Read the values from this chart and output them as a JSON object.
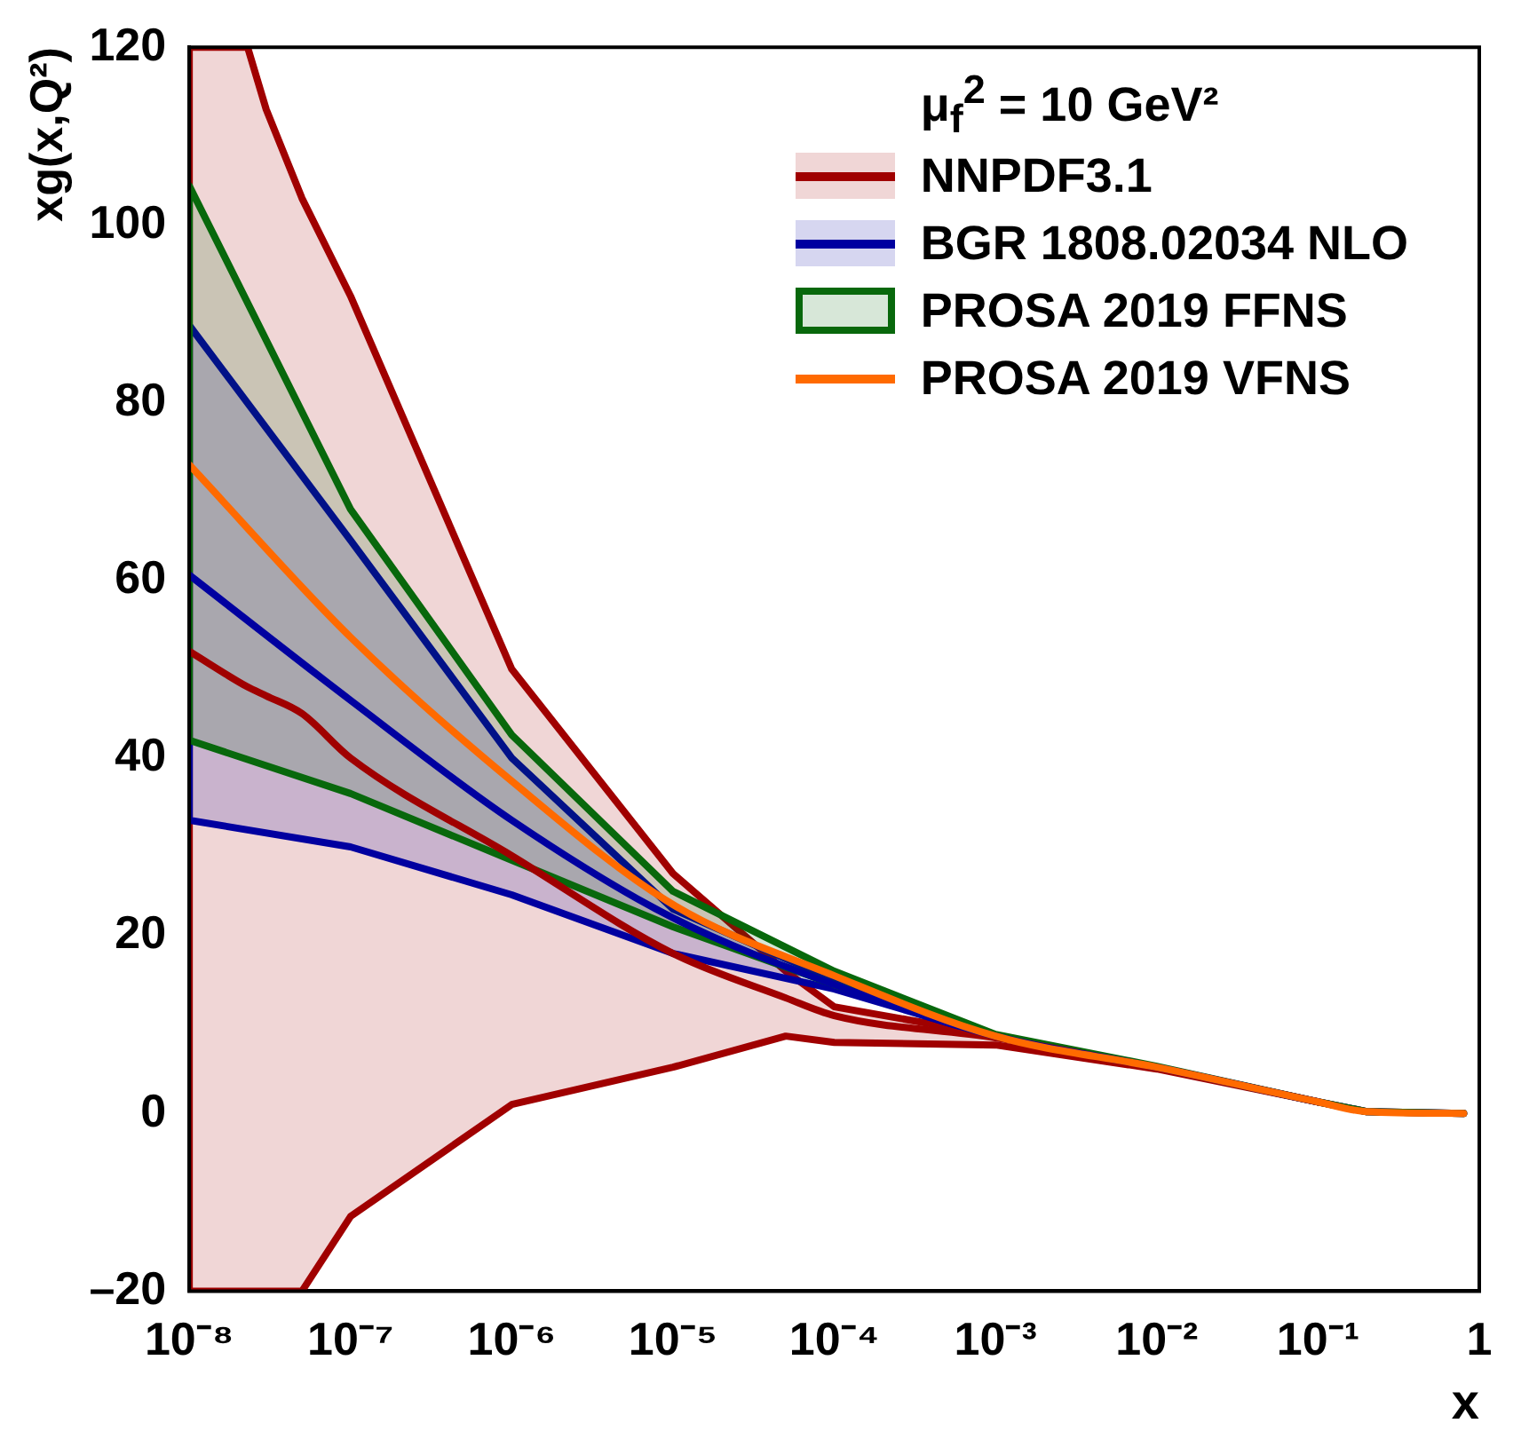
{
  "chart_data": {
    "type": "line",
    "xlabel": "x",
    "ylabel": "xg(x,Q²)",
    "legend_title": "μ$_{f}$$^{2}$ = 10 GeV²",
    "legend": "top right",
    "log": "x",
    "grid": false,
    "marker": "none",
    "line_style": "solid",
    "xlim": [
      1e-08,
      1
    ],
    "ylim": [
      -20,
      120
    ],
    "xticks": [
      {
        "value": 1e-08,
        "label": "10⁻⁸"
      },
      {
        "value": 1e-07,
        "label": "10⁻⁷"
      },
      {
        "value": 1e-06,
        "label": "10⁻⁶"
      },
      {
        "value": 1e-05,
        "label": "10⁻⁵"
      },
      {
        "value": 0.0001,
        "label": "10⁻⁴"
      },
      {
        "value": 0.001,
        "label": "10⁻³"
      },
      {
        "value": 0.01,
        "label": "10⁻²"
      },
      {
        "value": 0.1,
        "label": "10⁻¹"
      },
      1
    ],
    "yticks": [
      {
        "value": -20,
        "label": "–20"
      },
      0,
      20,
      40,
      60,
      80,
      100,
      120
    ],
    "x": [
      1e-08,
      1e-07,
      1e-06,
      1e-05,
      0.0001,
      0.001,
      0.01,
      0.1,
      0.2,
      0.8
    ],
    "series": [
      {
        "name": "NNPDF3.1",
        "color": "#a00000",
        "x": [
          1e-08,
          2.3e-08,
          3e-08,
          5e-08,
          1e-07,
          1e-06,
          1e-05,
          5e-05,
          0.0001,
          0.001,
          0.01,
          0.1,
          0.2,
          0.8
        ],
        "values": [
          52,
          48,
          47,
          45,
          40,
          29,
          18,
          13,
          11,
          8.5,
          5.1,
          1.3,
          null,
          null
        ],
        "lower": [
          -20,
          -20,
          -20,
          -20,
          -11.6,
          1,
          5.2,
          8.7,
          8,
          7.7,
          5,
          1.3,
          0.2,
          0
        ],
        "upper": [
          120,
          120,
          113,
          103,
          92,
          50,
          27,
          16,
          12,
          8.8,
          5.2,
          1.3,
          0.2,
          0
        ]
      },
      {
        "name": "BGR 1808.02034 NLO",
        "color": "#0000a0",
        "values": [
          60.6,
          46.5,
          33,
          22,
          14.5,
          8.7,
          5.2,
          1.3,
          null,
          null
        ],
        "lower": [
          33,
          30,
          24.6,
          18,
          14,
          8.6,
          5.2,
          1.3,
          0.2,
          0
        ],
        "upper": [
          88.7,
          64.5,
          40,
          23,
          15,
          8.7,
          5.2,
          1.3,
          0.2,
          0
        ]
      },
      {
        "name": "PROSA 2019 FFNS",
        "color": "#08680c",
        "values": [
          null,
          null,
          null,
          null,
          null,
          null,
          null,
          null,
          null,
          null
        ],
        "lower": [
          42,
          36,
          28.5,
          21,
          14.5,
          8.6,
          5.2,
          1.3,
          0.2,
          0
        ],
        "upper": [
          104.4,
          68,
          42.6,
          25,
          16,
          8.9,
          5.3,
          1.3,
          0.2,
          0
        ]
      },
      {
        "name": "PROSA 2019 VFNS",
        "color": "#ff6a00",
        "values": [
          73,
          53.6,
          37.4,
          23.5,
          15.5,
          8.7,
          5.2,
          1.3,
          0.2,
          0
        ]
      }
    ]
  }
}
